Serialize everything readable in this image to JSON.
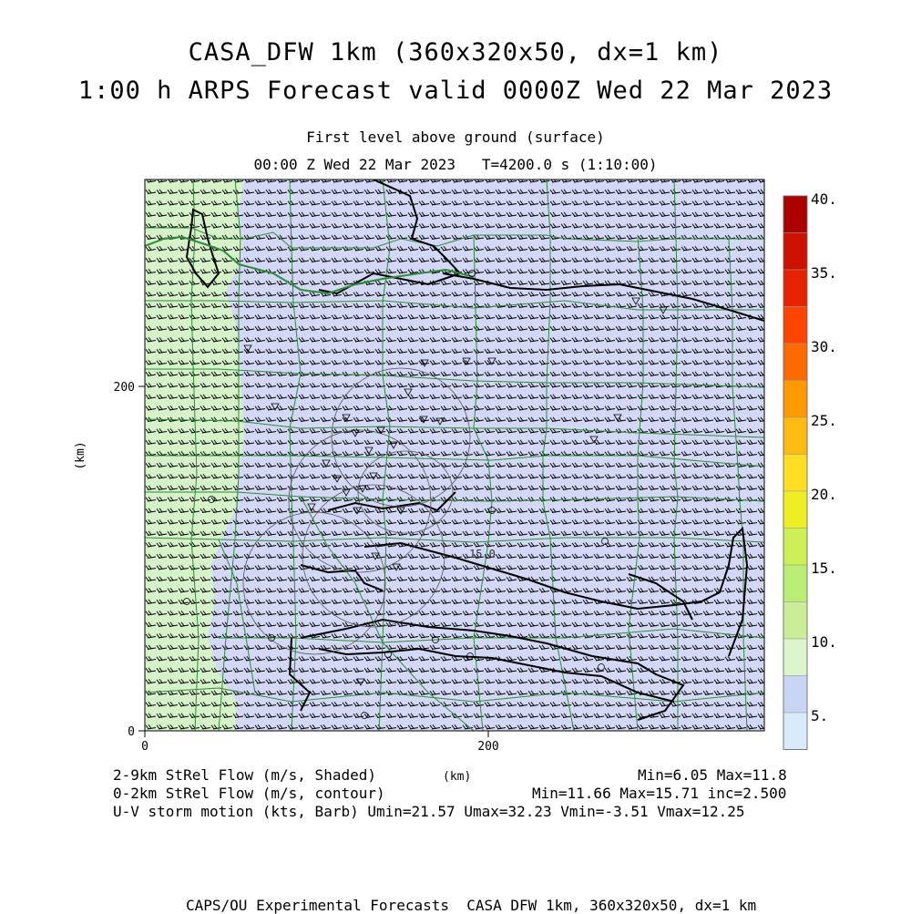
{
  "title": {
    "line1": "CASA_DFW 1km (360x320x50, dx=1 km)",
    "line2": "1:00 h ARPS Forecast valid 0000Z Wed 22 Mar 2023"
  },
  "subtitle": {
    "level": "First level above ground (surface)",
    "time": "00:00 Z Wed 22 Mar 2023   T=4200.0 s (1:10:00)"
  },
  "axes": {
    "y_label": "(km)",
    "y_ticks": [
      "200",
      "0"
    ],
    "x_ticks": [
      "0",
      "200"
    ],
    "x_label": "(km)"
  },
  "contour_label": "15.0",
  "colorbar": {
    "labels": [
      "40.",
      "35.",
      "30.",
      "25.",
      "20.",
      "15.",
      "10.",
      "5."
    ],
    "colors": [
      "#aa0000",
      "#cc1100",
      "#e62200",
      "#ff4400",
      "#ff6a00",
      "#ff9900",
      "#ffbb11",
      "#ffdd22",
      "#eeee22",
      "#ccf055",
      "#bbee77",
      "#ccee99",
      "#ddf5cc",
      "#c9d5f5",
      "#d8ebfb"
    ]
  },
  "legend": {
    "line1": "2-9km StRel Flow (m/s, Shaded)",
    "line2": "0-2km StRel Flow (m/s, contour)",
    "line3": "U-V storm motion (kts, Barb) Umin=21.57 Umax=32.23 Vmin=-3.51 Vmax=12.25",
    "stats1": "Min=6.05 Max=11.8",
    "stats2": "Min=11.66 Max=15.71 inc=2.500",
    "unit": "(km)"
  },
  "footer": "CAPS/OU Experimental Forecasts  CASA DFW 1km, 360x320x50, dx=1 km",
  "map_colors": {
    "shade_green": "#d6f2c8",
    "shade_blue": "#d2d8f6",
    "counties": "#2e8b3a",
    "coast_lines": "#000000"
  }
}
